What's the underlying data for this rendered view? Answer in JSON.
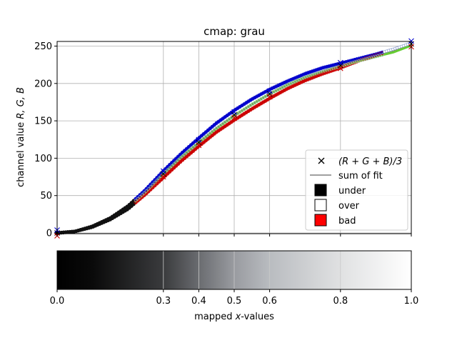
{
  "chart_data": {
    "type": "line",
    "title": "cmap: grau",
    "ylabel_prefix": "channel value ",
    "ylabel_vars": "R, G, B",
    "xlabel_prefix": "mapped ",
    "xlabel_var": "x",
    "xlabel_suffix": "-values",
    "xlim": [
      0.0,
      1.0
    ],
    "ylim": [
      0,
      255
    ],
    "yticks": [
      0,
      50,
      100,
      150,
      200,
      250
    ],
    "ytick_labels": [
      "0",
      "50",
      "100",
      "150",
      "200",
      "250"
    ],
    "xticks": [
      0.0,
      0.3,
      0.4,
      0.5,
      0.6,
      0.8,
      1.0
    ],
    "xtick_labels": [
      "0.0",
      "0.3",
      "0.4",
      "0.5",
      "0.6",
      "0.8",
      "1.0"
    ],
    "grid": true,
    "legend_position": "lower right",
    "legend": [
      {
        "label": "(R + G + B)/3",
        "marker": "x",
        "color": "#000000"
      },
      {
        "label": "sum of fit",
        "marker": "line",
        "color": "#808080"
      },
      {
        "label": "under",
        "marker": "square",
        "color": "#000000"
      },
      {
        "label": "over",
        "marker": "square",
        "color": "#ffffff"
      },
      {
        "label": "bad",
        "marker": "square",
        "color": "#ff0000"
      }
    ],
    "series": [
      {
        "color": "#cc0000",
        "x": [
          0,
          0.05,
          0.1,
          0.15,
          0.2,
          0.25,
          0.3,
          0.35,
          0.4,
          0.45,
          0.5,
          0.55,
          0.6,
          0.65,
          0.7,
          0.75,
          0.8,
          0.85,
          0.9,
          0.95,
          1.0
        ],
        "y": [
          0,
          2,
          8,
          18,
          32,
          52,
          74,
          96,
          116,
          135,
          151,
          166,
          180,
          193,
          204,
          213,
          221,
          230,
          238,
          245,
          253
        ]
      },
      {
        "color": "#66cc33",
        "x": [
          0,
          0.05,
          0.1,
          0.15,
          0.2,
          0.25,
          0.3,
          0.35,
          0.4,
          0.45,
          0.5,
          0.55,
          0.6,
          0.65,
          0.7,
          0.75,
          0.8,
          0.85,
          0.9,
          0.95,
          1.0
        ],
        "y": [
          0,
          2,
          8,
          19,
          34,
          55,
          79,
          101,
          121,
          140,
          157,
          172,
          186,
          198,
          208,
          216,
          223,
          230,
          236,
          242,
          251
        ]
      },
      {
        "color": "#0000cc",
        "x": [
          0,
          0.05,
          0.1,
          0.15,
          0.2,
          0.25,
          0.3,
          0.35,
          0.4,
          0.45,
          0.5,
          0.55,
          0.6,
          0.65,
          0.7,
          0.75,
          0.8,
          0.85,
          0.9,
          0.95,
          1.0
        ],
        "y": [
          0,
          2,
          9,
          20,
          36,
          58,
          83,
          106,
          127,
          147,
          164,
          179,
          192,
          203,
          213,
          221,
          227,
          233,
          239,
          246,
          254
        ]
      },
      {
        "color": "#808080",
        "x": [
          0,
          0.05,
          0.1,
          0.15,
          0.2,
          0.25,
          0.3,
          0.35,
          0.4,
          0.45,
          0.5,
          0.55,
          0.6,
          0.65,
          0.7,
          0.75,
          0.8,
          0.85,
          0.9,
          0.95,
          1.0
        ],
        "y": [
          0,
          2,
          8,
          19,
          34,
          55,
          79,
          101,
          121,
          141,
          157,
          172,
          186,
          198,
          208,
          217,
          224,
          231,
          238,
          244,
          253
        ]
      }
    ],
    "avg_markers": {
      "x": [
        0,
        0.3,
        0.4,
        0.5,
        0.6,
        0.8,
        1.0
      ],
      "y": [
        0,
        79,
        121,
        158,
        186,
        224,
        253
      ]
    },
    "colorbar": {
      "gradient_stops": [
        {
          "x": 0.0,
          "color": "#000000"
        },
        {
          "x": 0.1,
          "color": "#0a0a0a"
        },
        {
          "x": 0.3,
          "color": "#3a3b3d"
        },
        {
          "x": 0.4,
          "color": "#6a6c70"
        },
        {
          "x": 0.5,
          "color": "#999ba0"
        },
        {
          "x": 0.6,
          "color": "#b9bcc0"
        },
        {
          "x": 0.8,
          "color": "#e0e1e2"
        },
        {
          "x": 1.0,
          "color": "#ffffff"
        }
      ]
    }
  }
}
